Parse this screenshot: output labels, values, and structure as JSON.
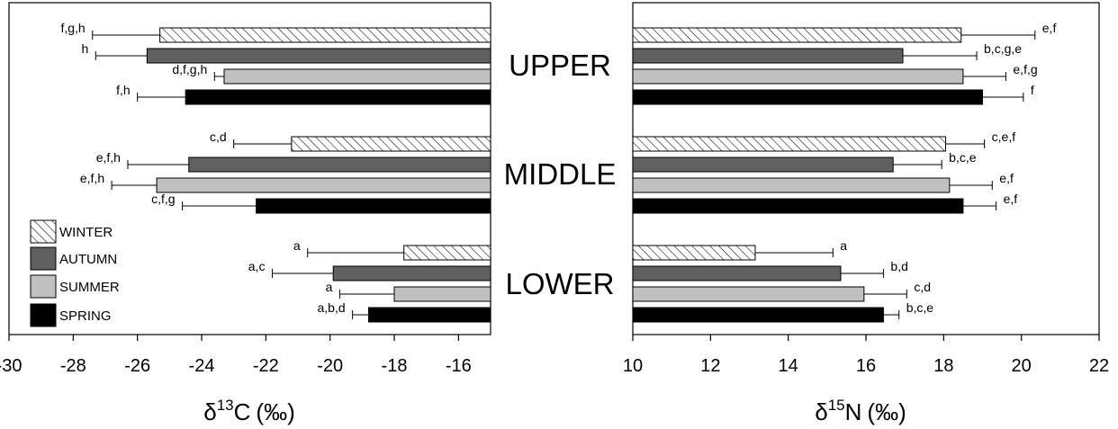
{
  "chart_data": [
    {
      "type": "bar",
      "orientation": "horizontal",
      "xlabel": "δ13C (‰)",
      "xlabel_parts": {
        "symbol": "δ",
        "sup": "13",
        "element": "C",
        "unit": "(‰)"
      },
      "xlim": [
        -30,
        -15
      ],
      "xticks": [
        "-30",
        "-28",
        "-26",
        "-24",
        "-22",
        "-20",
        "-18",
        "-16"
      ],
      "categories": [
        "UPPER",
        "MIDDLE",
        "LOWER"
      ],
      "bars_extend_from": "right",
      "series": [
        {
          "name": "WINTER",
          "values": [
            -25.3,
            -21.2,
            -17.7
          ],
          "errors": [
            2.1,
            1.8,
            3.0
          ],
          "letters": [
            "f,g,h",
            "c,d",
            "a"
          ]
        },
        {
          "name": "AUTUMN",
          "values": [
            -25.7,
            -24.4,
            -19.9
          ],
          "errors": [
            1.6,
            1.9,
            1.9
          ],
          "letters": [
            "h",
            "e,f,h",
            "a,c"
          ]
        },
        {
          "name": "SUMMER",
          "values": [
            -23.3,
            -25.4,
            -18.0
          ],
          "errors": [
            0.3,
            1.4,
            1.7
          ],
          "letters": [
            "d,f,g,h",
            "e,f,h",
            "a"
          ]
        },
        {
          "name": "SPRING",
          "values": [
            -24.5,
            -22.3,
            -18.8
          ],
          "errors": [
            1.5,
            2.3,
            0.5
          ],
          "letters": [
            "f,h",
            "c,f,g",
            "a,b,d"
          ]
        }
      ],
      "legend_position": "bottom-left"
    },
    {
      "type": "bar",
      "orientation": "horizontal",
      "xlabel": "δ15N (‰)",
      "xlabel_parts": {
        "symbol": "δ",
        "sup": "15",
        "element": "N",
        "unit": "(‰)"
      },
      "xlim": [
        10,
        22
      ],
      "xticks": [
        "10",
        "12",
        "14",
        "16",
        "18",
        "20",
        "22"
      ],
      "categories": [
        "UPPER",
        "MIDDLE",
        "LOWER"
      ],
      "bars_extend_from": "left",
      "series": [
        {
          "name": "WINTER",
          "values": [
            18.45,
            18.05,
            13.15
          ],
          "errors": [
            1.9,
            1.0,
            2.0
          ],
          "letters": [
            "e,f",
            "c,e,f",
            "a"
          ]
        },
        {
          "name": "AUTUMN",
          "values": [
            16.95,
            16.7,
            15.35
          ],
          "errors": [
            1.9,
            1.25,
            1.1
          ],
          "letters": [
            "b,c,g,e",
            "b,c,e",
            "b,d"
          ]
        },
        {
          "name": "SUMMER",
          "values": [
            18.5,
            18.15,
            15.95
          ],
          "errors": [
            1.1,
            1.1,
            1.1
          ],
          "letters": [
            "e,f,g",
            "e,f",
            "c,d"
          ]
        },
        {
          "name": "SPRING",
          "values": [
            19.0,
            18.5,
            16.45
          ],
          "errors": [
            1.05,
            0.85,
            0.4
          ],
          "letters": [
            "f",
            "e,f",
            "b,c,e"
          ]
        }
      ]
    }
  ],
  "legend": [
    {
      "label": "WINTER",
      "fill": "hatch"
    },
    {
      "label": "AUTUMN",
      "fill": "#606060"
    },
    {
      "label": "SUMMER",
      "fill": "#c0c0c0"
    },
    {
      "label": "SPRING",
      "fill": "#000000"
    }
  ],
  "colors": {
    "WINTER": "hatch",
    "AUTUMN": "#606060",
    "SUMMER": "#c0c0c0",
    "SPRING": "#000000"
  }
}
